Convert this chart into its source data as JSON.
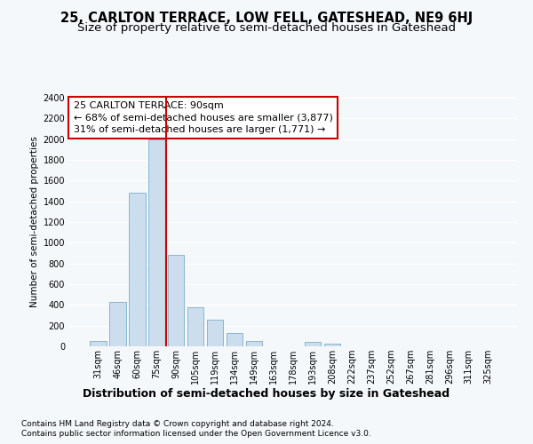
{
  "title": "25, CARLTON TERRACE, LOW FELL, GATESHEAD, NE9 6HJ",
  "subtitle": "Size of property relative to semi-detached houses in Gateshead",
  "xlabel": "Distribution of semi-detached houses by size in Gateshead",
  "ylabel": "Number of semi-detached properties",
  "categories": [
    "31sqm",
    "46sqm",
    "60sqm",
    "75sqm",
    "90sqm",
    "105sqm",
    "119sqm",
    "134sqm",
    "149sqm",
    "163sqm",
    "178sqm",
    "193sqm",
    "208sqm",
    "222sqm",
    "237sqm",
    "252sqm",
    "267sqm",
    "281sqm",
    "296sqm",
    "311sqm",
    "325sqm"
  ],
  "values": [
    50,
    430,
    1480,
    2000,
    880,
    375,
    260,
    130,
    50,
    0,
    0,
    40,
    30,
    0,
    0,
    0,
    0,
    0,
    0,
    0,
    0
  ],
  "bar_color": "#ccdded",
  "bar_edge_color": "#7aaec8",
  "vline_x_index": 3,
  "vline_color": "#cc0000",
  "annotation_text": "25 CARLTON TERRACE: 90sqm\n← 68% of semi-detached houses are smaller (3,877)\n31% of semi-detached houses are larger (1,771) →",
  "annotation_box_color": "#ffffff",
  "annotation_box_edge": "#cc0000",
  "ylim": [
    0,
    2400
  ],
  "yticks": [
    0,
    200,
    400,
    600,
    800,
    1000,
    1200,
    1400,
    1600,
    1800,
    2000,
    2200,
    2400
  ],
  "footer1": "Contains HM Land Registry data © Crown copyright and database right 2024.",
  "footer2": "Contains public sector information licensed under the Open Government Licence v3.0.",
  "bg_color": "#f5f8fb",
  "plot_bg_color": "#f5f8fb",
  "grid_color": "#ffffff",
  "title_fontsize": 10.5,
  "subtitle_fontsize": 9.5,
  "annotation_fontsize": 8,
  "ylabel_fontsize": 7.5,
  "xlabel_fontsize": 9,
  "footer_fontsize": 6.5
}
